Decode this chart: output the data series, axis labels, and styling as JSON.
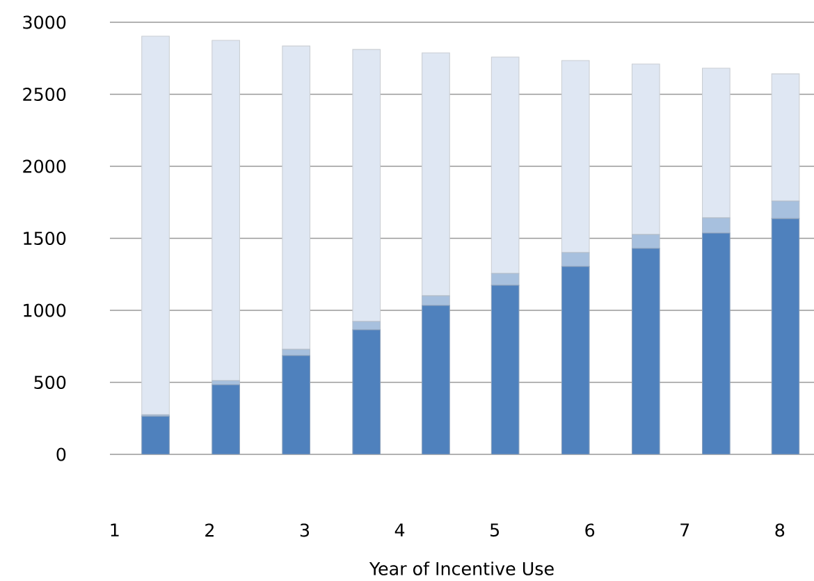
{
  "chart_data": {
    "type": "bar",
    "stacked": true,
    "xlabel": "Year of Incentive Use",
    "x": [
      1.43,
      2.17,
      2.91,
      3.65,
      4.38,
      5.11,
      5.85,
      6.59,
      7.33,
      8.06
    ],
    "xlim": [
      0.95,
      8.36
    ],
    "xticks": [
      1,
      2,
      3,
      4,
      5,
      6,
      7,
      8
    ],
    "ylim": [
      0,
      3000
    ],
    "yticks": [
      0,
      500,
      1000,
      1500,
      2000,
      2500,
      3000
    ],
    "grid": "y",
    "series": [
      {
        "color": "#4f81bd",
        "values": [
          265,
          483,
          686,
          865,
          1034,
          1174,
          1304,
          1430,
          1536,
          1637
        ]
      },
      {
        "color": "#a7c0de",
        "values": [
          10,
          29,
          43,
          58,
          67,
          82,
          97,
          96,
          106,
          121
        ]
      },
      {
        "color": "#dfe7f3",
        "values": [
          2628,
          2362,
          2106,
          1888,
          1686,
          1502,
          1333,
          1184,
          1039,
          884
        ]
      }
    ]
  }
}
